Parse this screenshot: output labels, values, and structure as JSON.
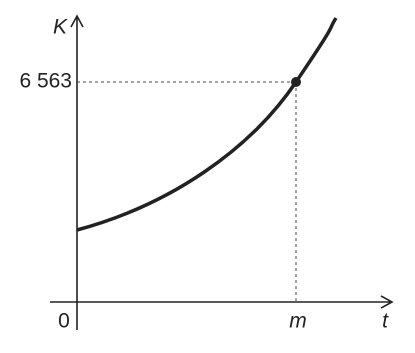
{
  "axes": {
    "y_label": "K",
    "x_label": "t",
    "origin": "0"
  },
  "point": {
    "x_label": "m",
    "y_label": "6 563"
  }
}
